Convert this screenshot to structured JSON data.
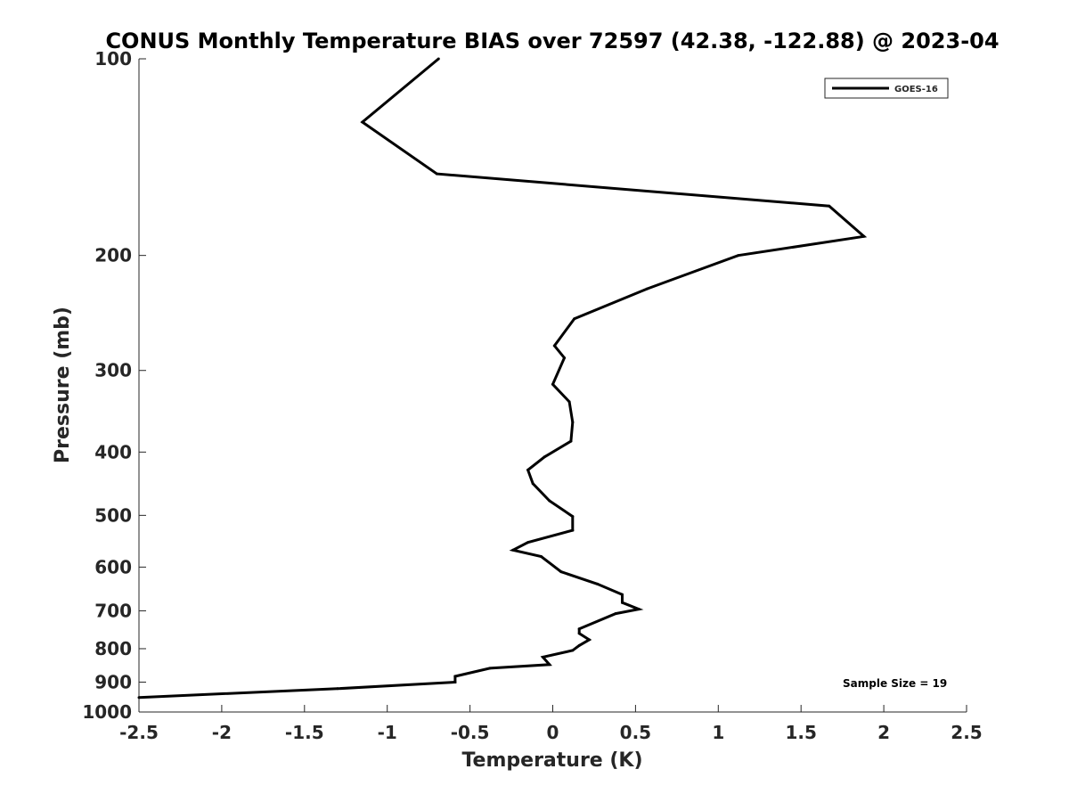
{
  "chart_data": {
    "type": "line",
    "title": "CONUS Monthly Temperature BIAS over 72597 (42.38, -122.88) @ 2023-04",
    "xlabel": "Temperature (K)",
    "ylabel": "Pressure (mb)",
    "xlim": [
      -2.5,
      2.5
    ],
    "ylim": [
      100,
      1000
    ],
    "y_scale": "log",
    "y_reversed": true,
    "grid": false,
    "legend_placement": "top-right",
    "x_ticks": [
      -2.5,
      -2,
      -1.5,
      -1,
      -0.5,
      0,
      0.5,
      1,
      1.5,
      2,
      2.5
    ],
    "x_tick_labels": [
      "-2.5",
      "-2",
      "-1.5",
      "-1",
      "-0.5",
      "0",
      "0.5",
      "1",
      "1.5",
      "2",
      "2.5"
    ],
    "y_ticks": [
      100,
      200,
      300,
      400,
      500,
      600,
      700,
      800,
      900,
      1000
    ],
    "y_tick_labels": [
      "100",
      "200",
      "300",
      "400",
      "500",
      "600",
      "700",
      "800",
      "900",
      "1000"
    ],
    "annotation": "Sample Size = 19",
    "series": [
      {
        "name": "GOES-16",
        "color": "#000000",
        "points": [
          {
            "x": -0.69,
            "p": 100
          },
          {
            "x": -1.15,
            "p": 125
          },
          {
            "x": -0.7,
            "p": 150
          },
          {
            "x": 1.67,
            "p": 168
          },
          {
            "x": 1.88,
            "p": 187
          },
          {
            "x": 1.12,
            "p": 200
          },
          {
            "x": 0.57,
            "p": 225
          },
          {
            "x": 0.13,
            "p": 250
          },
          {
            "x": 0.01,
            "p": 275
          },
          {
            "x": 0.07,
            "p": 287
          },
          {
            "x": 0.0,
            "p": 315
          },
          {
            "x": 0.1,
            "p": 335
          },
          {
            "x": 0.12,
            "p": 360
          },
          {
            "x": 0.11,
            "p": 385
          },
          {
            "x": -0.05,
            "p": 407
          },
          {
            "x": -0.15,
            "p": 426
          },
          {
            "x": -0.12,
            "p": 447
          },
          {
            "x": -0.02,
            "p": 475
          },
          {
            "x": 0.12,
            "p": 502
          },
          {
            "x": 0.12,
            "p": 527
          },
          {
            "x": -0.15,
            "p": 550
          },
          {
            "x": -0.24,
            "p": 565
          },
          {
            "x": -0.07,
            "p": 578
          },
          {
            "x": 0.05,
            "p": 610
          },
          {
            "x": 0.27,
            "p": 637
          },
          {
            "x": 0.42,
            "p": 661
          },
          {
            "x": 0.42,
            "p": 680
          },
          {
            "x": 0.52,
            "p": 696
          },
          {
            "x": 0.38,
            "p": 707
          },
          {
            "x": 0.16,
            "p": 746
          },
          {
            "x": 0.16,
            "p": 758
          },
          {
            "x": 0.22,
            "p": 775
          },
          {
            "x": 0.16,
            "p": 791
          },
          {
            "x": 0.12,
            "p": 805
          },
          {
            "x": -0.06,
            "p": 824
          },
          {
            "x": -0.02,
            "p": 846
          },
          {
            "x": -0.38,
            "p": 857
          },
          {
            "x": -0.59,
            "p": 882
          },
          {
            "x": -0.59,
            "p": 900
          },
          {
            "x": -1.3,
            "p": 921
          },
          {
            "x": -2.5,
            "p": 950
          }
        ]
      }
    ]
  }
}
